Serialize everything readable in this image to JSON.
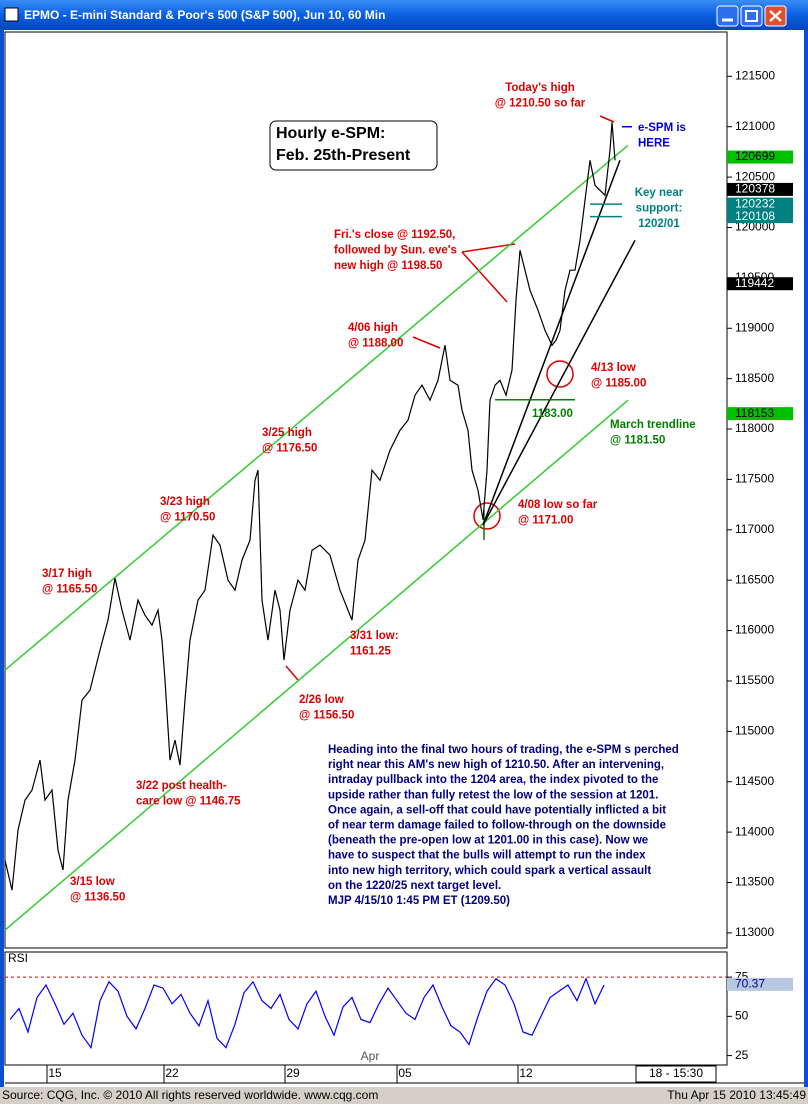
{
  "window": {
    "title": "EPMO - E-mini Standard & Poor's 500 (S&P 500), Jun 10, 60 Min",
    "footer_left": "Source: CQG, Inc. © 2010 All rights reserved worldwide. www.cqg.com",
    "footer_right": "Thu Apr 15 2010 13:45:49"
  },
  "chart_data": [
    {
      "type": "line",
      "title_box": [
        "Hourly e-SPM:",
        "Feb. 25th-Present"
      ],
      "x": [
        0,
        7,
        13,
        20,
        27,
        35,
        40,
        47,
        53,
        58,
        63,
        70,
        77,
        85,
        95,
        103,
        110,
        117,
        125,
        133,
        140,
        147,
        153,
        157,
        160,
        165,
        170,
        175,
        180,
        185,
        193,
        200,
        208,
        215,
        223,
        230,
        237,
        245,
        250,
        253,
        257,
        263,
        270,
        275,
        279,
        285,
        293,
        300,
        307,
        315,
        325,
        335,
        343,
        347,
        353,
        360,
        367,
        375,
        385,
        395,
        403,
        410,
        417,
        425,
        433,
        440,
        445,
        453,
        457,
        463,
        467,
        473,
        478,
        482,
        485,
        490,
        495,
        501,
        507,
        511,
        515,
        520,
        525,
        533,
        540,
        547,
        551,
        555,
        560,
        565,
        570,
        575,
        580,
        585,
        590,
        595,
        600,
        605,
        607,
        610
      ],
      "series": [
        {
          "color": "#000000",
          "values": [
            113723,
            113425,
            114020,
            114318,
            114417,
            114715,
            114318,
            114417,
            113822,
            113624,
            114318,
            114715,
            115310,
            115409,
            115806,
            116104,
            116520,
            116203,
            115905,
            116302,
            116153,
            116054,
            116203,
            115905,
            115508,
            114715,
            114913,
            114665,
            115310,
            115905,
            116302,
            116401,
            116947,
            116848,
            116500,
            116401,
            116699,
            116897,
            117492,
            117592,
            116302,
            115905,
            116401,
            116203,
            115707,
            116203,
            116500,
            116401,
            116798,
            116848,
            116748,
            116401,
            116203,
            116104,
            116699,
            116897,
            117592,
            117492,
            117790,
            117988,
            118088,
            118336,
            118435,
            118286,
            118484,
            118832,
            118484,
            118435,
            118187,
            117988,
            117592,
            117393,
            117100,
            117592,
            118286,
            118435,
            118484,
            118336,
            118584,
            119278,
            119774,
            119576,
            119377,
            119179,
            118980,
            118832,
            118881,
            118980,
            119377,
            119576,
            119576,
            119873,
            120270,
            120667,
            120419,
            120369,
            120320,
            120766,
            121044,
            120667
          ]
        }
      ],
      "xlim": [
        0,
        722
      ],
      "ylim": [
        112850,
        121940
      ],
      "yticks": [
        113000,
        113500,
        114000,
        114500,
        115000,
        115500,
        116000,
        116500,
        117000,
        117500,
        118000,
        118500,
        119000,
        119500,
        120000,
        120500,
        121000,
        121500
      ],
      "price_markers": [
        {
          "value": 120699,
          "color": "#00c000",
          "text_color": "#000000"
        },
        {
          "value": 120378,
          "color": "#000000",
          "text_color": "#ffffff"
        },
        {
          "value": 120232,
          "color": "#008080",
          "text_color": "#ffffff"
        },
        {
          "value": 120108,
          "color": "#008080",
          "text_color": "#ffffff"
        },
        {
          "value": 119442,
          "color": "#000000",
          "text_color": "#ffffff"
        },
        {
          "value": 118153,
          "color": "#00c000",
          "text_color": "#000000"
        }
      ],
      "trendlines": [
        {
          "color": "#33cc33",
          "x": [
            0,
            623
          ],
          "values": [
            115608,
            120816
          ]
        },
        {
          "color": "#33cc33",
          "x": [
            0,
            623
          ],
          "values": [
            113028,
            118286
          ]
        },
        {
          "color": "#000000",
          "x": [
            478,
            615
          ],
          "values": [
            117046,
            120667
          ]
        },
        {
          "color": "#000000",
          "x": [
            478,
            630
          ],
          "values": [
            117046,
            119873
          ]
        },
        {
          "color": "#008000",
          "x": [
            490,
            570
          ],
          "values": [
            118290,
            118290
          ]
        },
        {
          "color": "#008080",
          "x": [
            585,
            617
          ],
          "values": [
            120232,
            120232
          ]
        },
        {
          "color": "#008080",
          "x": [
            585,
            617
          ],
          "values": [
            120108,
            120108
          ]
        },
        {
          "color": "#0000cc",
          "x": [
            617,
            627
          ],
          "values": [
            121000,
            121000
          ]
        }
      ],
      "annotations": [
        {
          "color": "#dd0000",
          "lines": [
            "Today's high",
            "@ 1210.50 so far"
          ]
        },
        {
          "color": "#0000cc",
          "lines": [
            "e-SPM is",
            "HERE"
          ]
        },
        {
          "color": "#008080",
          "lines": [
            "Key near",
            "support:",
            "1202/01"
          ]
        },
        {
          "color": "#dd0000",
          "lines": [
            "Fri.'s close @ 1192.50,",
            "followed by Sun. eve's",
            "new high @ 1198.50"
          ]
        },
        {
          "color": "#dd0000",
          "lines": [
            "4/06 high",
            "@ 1188.00"
          ]
        },
        {
          "color": "#dd0000",
          "lines": [
            "4/13 low",
            "@ 1185.00"
          ]
        },
        {
          "color": "#008000",
          "lines": [
            "1183.00"
          ]
        },
        {
          "color": "#008000",
          "lines": [
            "March trendline",
            "@ 1181.50"
          ]
        },
        {
          "color": "#dd0000",
          "lines": [
            "3/25 high",
            "@ 1176.50"
          ]
        },
        {
          "color": "#dd0000",
          "lines": [
            "3/23 high",
            "@ 1170.50"
          ]
        },
        {
          "color": "#dd0000",
          "lines": [
            "4/08 low so far",
            "@ 1171.00"
          ]
        },
        {
          "color": "#dd0000",
          "lines": [
            "3/17 high",
            "@ 1165.50"
          ]
        },
        {
          "color": "#dd0000",
          "lines": [
            "3/31 low:",
            "1161.25"
          ]
        },
        {
          "color": "#dd0000",
          "lines": [
            "2/26 low",
            "@ 1156.50"
          ]
        },
        {
          "color": "#dd0000",
          "lines": [
            "3/22 post health-",
            "care low @ 1146.75"
          ]
        },
        {
          "color": "#dd0000",
          "lines": [
            "3/15 low",
            "@ 1136.50"
          ]
        }
      ],
      "commentary": [
        "Heading into the final two hours of trading, the e-SPM s perched",
        "right near this AM's new high of 1210.50. After an intervening,",
        "intraday pullback into the 1204 area, the index pivoted to the",
        "upside rather than fully retest the low of the session at 1201.",
        "Once again, a sell-off that could have potentially inflicted a bit",
        "of near term damage failed to follow-through on the downside",
        "(beneath the pre-open low at 1201.00 in this case).  Now we",
        "have to suspect that the bulls will attempt to run the index",
        "into new high territory, which could spark a vertical assault",
        "on the 1220/25 next target level.",
        "MJP  4/15/10  1:45 PM ET (1209.50)"
      ]
    },
    {
      "type": "line",
      "label": "RSI",
      "x": [
        5,
        14,
        23,
        32,
        41,
        50,
        59,
        68,
        77,
        86,
        95,
        104,
        113,
        122,
        131,
        140,
        149,
        158,
        167,
        176,
        185,
        194,
        203,
        212,
        221,
        230,
        239,
        248,
        257,
        266,
        275,
        284,
        293,
        302,
        311,
        320,
        329,
        338,
        347,
        356,
        365,
        374,
        383,
        392,
        401,
        410,
        419,
        428,
        437,
        446,
        455,
        464,
        473,
        482,
        491,
        500,
        509,
        518,
        527,
        536,
        545,
        554,
        563,
        572,
        581,
        590,
        599
      ],
      "series": [
        {
          "color": "#0000ff",
          "values": [
            48,
            55,
            40,
            62,
            70,
            58,
            45,
            52,
            38,
            30,
            60,
            72,
            66,
            50,
            42,
            55,
            70,
            68,
            58,
            64,
            52,
            44,
            60,
            36,
            30,
            45,
            65,
            72,
            60,
            55,
            64,
            48,
            42,
            58,
            66,
            50,
            38,
            56,
            62,
            48,
            46,
            58,
            68,
            60,
            52,
            48,
            62,
            70,
            56,
            44,
            40,
            32,
            50,
            66,
            74,
            70,
            58,
            40,
            38,
            50,
            62,
            66,
            70,
            60,
            74,
            58,
            70
          ]
        }
      ],
      "xlim": [
        0,
        722
      ],
      "ylim": [
        19,
        91
      ],
      "yticks": [
        25,
        50,
        75
      ],
      "ref_line": 75,
      "last_value": 70.37,
      "xticks": [
        {
          "value": 50,
          "label": "15"
        },
        {
          "value": 167,
          "label": "22"
        },
        {
          "value": 288,
          "label": "29"
        },
        {
          "value": 400,
          "label": "05"
        },
        {
          "value": 521,
          "label": "12"
        }
      ],
      "month_label": "Apr",
      "cursor_label": "18 - 15:30"
    }
  ]
}
